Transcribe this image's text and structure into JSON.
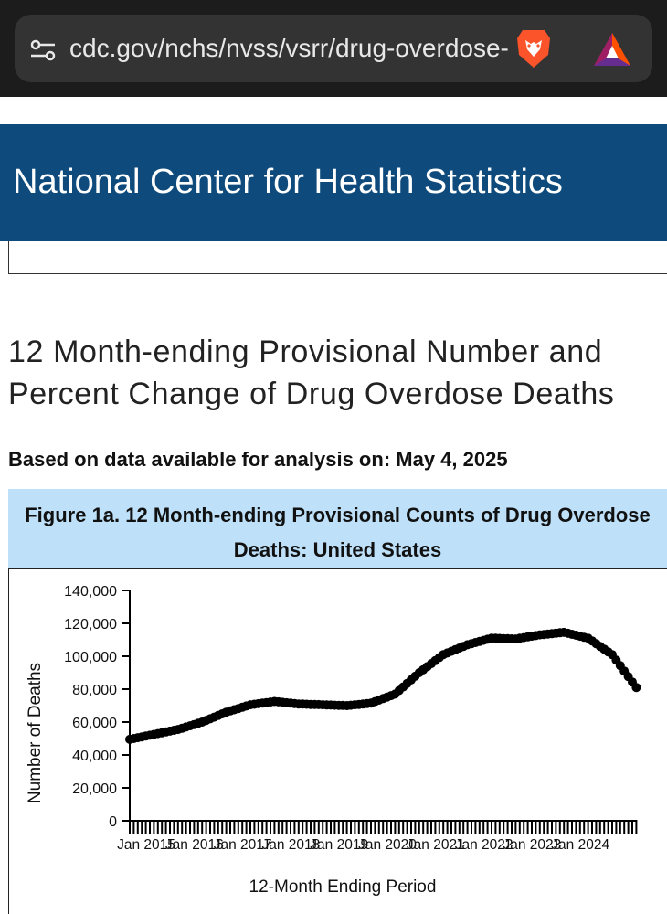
{
  "browser": {
    "url": "cdc.gov/nchs/nvss/vsrr/drug-overdose-data.htm",
    "tune_icon": "tune-icon",
    "brave_icon": "brave-lion-icon",
    "rewards_icon": "bat-rewards-icon"
  },
  "banner": {
    "title": "National Center for Health Statistics",
    "color": "#0e4a7b"
  },
  "page": {
    "heading": "12 Month-ending Provisional Number and Percent Change of Drug Overdose Deaths",
    "based_on": "Based on data available for analysis on: May 4, 2025"
  },
  "figure": {
    "title": "Figure 1a. 12 Month-ending Provisional Counts of Drug Overdose Deaths: United States"
  },
  "chart_data": {
    "type": "line",
    "title": "Figure 1a. 12 Month-ending Provisional Counts of Drug Overdose Deaths: United States",
    "xlabel": "12-Month Ending Period",
    "ylabel": "Number of Deaths",
    "ylim": [
      0,
      140000
    ],
    "yticks": [
      "0",
      "20,000",
      "40,000",
      "60,000",
      "80,000",
      "100,000",
      "120,000",
      "140,000"
    ],
    "xticks": [
      "Jan 2015",
      "Jan 2016",
      "Jan 2017",
      "Jan 2018",
      "Jan 2019",
      "Jan 2020",
      "Jan 2021",
      "Jan 2022",
      "Jan 2023",
      "Jan 2024"
    ],
    "x_start": "Jan 2015",
    "anchor_points": [
      {
        "month": 0,
        "value": 49500
      },
      {
        "month": 6,
        "value": 52500
      },
      {
        "month": 12,
        "value": 55500
      },
      {
        "month": 18,
        "value": 60000
      },
      {
        "month": 24,
        "value": 66000
      },
      {
        "month": 30,
        "value": 70500
      },
      {
        "month": 36,
        "value": 72500
      },
      {
        "month": 42,
        "value": 71000
      },
      {
        "month": 48,
        "value": 70500
      },
      {
        "month": 54,
        "value": 70000
      },
      {
        "month": 60,
        "value": 71500
      },
      {
        "month": 66,
        "value": 77000
      },
      {
        "month": 72,
        "value": 90000
      },
      {
        "month": 78,
        "value": 101000
      },
      {
        "month": 84,
        "value": 107000
      },
      {
        "month": 90,
        "value": 111000
      },
      {
        "month": 96,
        "value": 110500
      },
      {
        "month": 102,
        "value": 113000
      },
      {
        "month": 108,
        "value": 114500
      },
      {
        "month": 114,
        "value": 111000
      },
      {
        "month": 120,
        "value": 101000
      },
      {
        "month": 126,
        "value": 81000
      }
    ],
    "marker_color": "#000000",
    "line_color": "#000000"
  }
}
